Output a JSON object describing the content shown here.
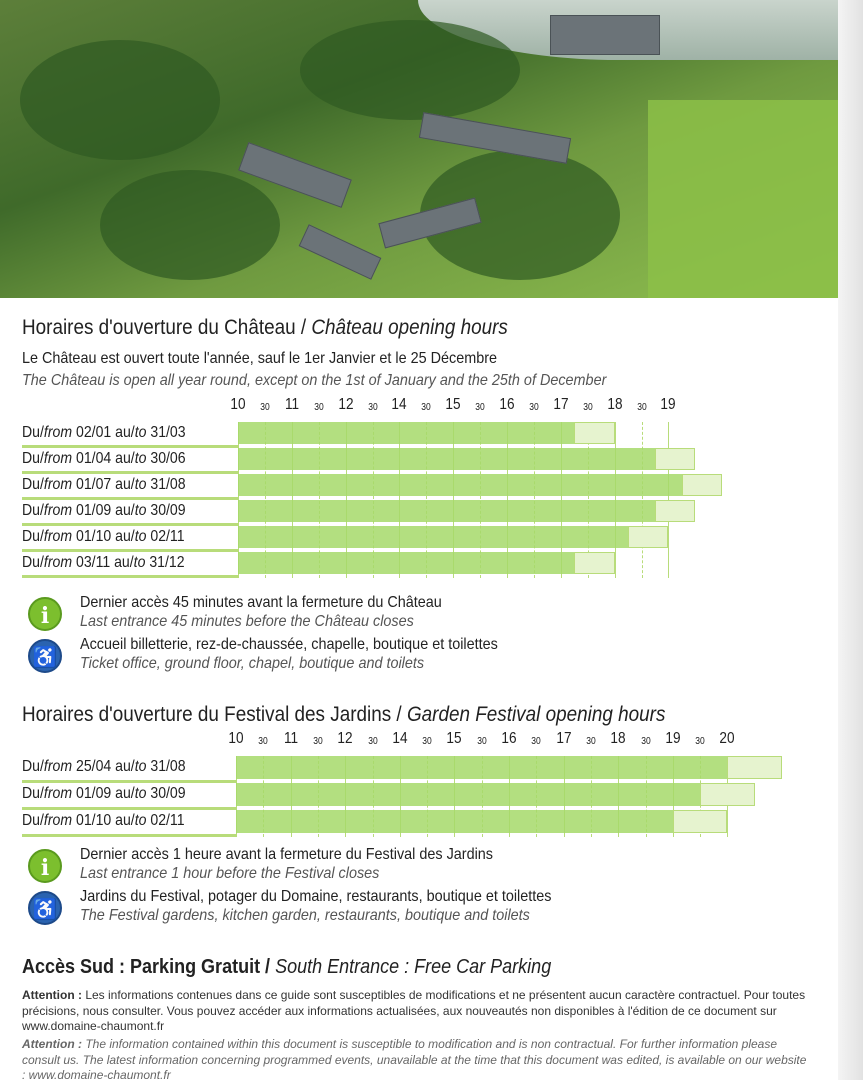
{
  "chateau": {
    "title_fr": "Horaires d'ouverture du Château /",
    "title_en": " Château opening hours",
    "intro_fr": "Le Château est ouvert toute l'année, sauf le 1er Janvier et le 25 Décembre",
    "intro_en": "The Château is open all year round, except on the 1st of January and the 25th of December",
    "axis_ticks": [
      "10",
      "30",
      "11",
      "30",
      "12",
      "30",
      "14",
      "30",
      "15",
      "30",
      "16",
      "30",
      "17",
      "30",
      "18",
      "30",
      "19"
    ],
    "rows": [
      {
        "from": "02/01",
        "to": "31/03",
        "last_entry": "16:15",
        "closing": "17:00"
      },
      {
        "from": "01/04",
        "to": "30/06",
        "last_entry": "17:45",
        "closing": "18:30"
      },
      {
        "from": "01/07",
        "to": "31/08",
        "last_entry": "18:15",
        "closing": "19:00"
      },
      {
        "from": "01/09",
        "to": "30/09",
        "last_entry": "17:45",
        "closing": "18:30"
      },
      {
        "from": "01/10",
        "to": "02/11",
        "last_entry": "17:15",
        "closing": "18:00"
      },
      {
        "from": "03/11",
        "to": "31/12",
        "last_entry": "16:15",
        "closing": "17:00"
      }
    ],
    "notes": [
      {
        "icon": "info-icon",
        "fr": "Dernier accès 45 minutes avant la fermeture du Château",
        "en": "Last entrance 45 minutes before the Château closes"
      },
      {
        "icon": "wheelchair-icon",
        "fr": "Accueil billetterie, rez-de-chaussée, chapelle, boutique et toilettes",
        "en": "Ticket office, ground floor, chapel, boutique and toilets"
      }
    ]
  },
  "garden": {
    "title_fr": "Horaires d'ouverture du Festival des Jardins /",
    "title_en": " Garden Festival opening hours",
    "axis_ticks": [
      "10",
      "30",
      "11",
      "30",
      "12",
      "30",
      "14",
      "30",
      "15",
      "30",
      "16",
      "30",
      "17",
      "30",
      "18",
      "30",
      "19",
      "30",
      "20"
    ],
    "rows": [
      {
        "from": "25/04",
        "to": "31/08",
        "last_entry": "19:00",
        "closing": "20:00"
      },
      {
        "from": "01/09",
        "to": "30/09",
        "last_entry": "18:30",
        "closing": "19:30"
      },
      {
        "from": "01/10",
        "to": "02/11",
        "last_entry": "18:00",
        "closing": "19:00"
      }
    ],
    "notes": [
      {
        "icon": "info-icon",
        "fr": "Dernier accès 1 heure avant la fermeture du Festival des Jardins",
        "en": "Last entrance 1 hour before the Festival closes"
      },
      {
        "icon": "wheelchair-icon",
        "fr": "Jardins du Festival, potager du Domaine, restaurants, boutique et toilettes",
        "en": "The Festival gardens, kitchen garden, restaurants, boutique and toilets"
      }
    ]
  },
  "row_words": {
    "du": "Du/",
    "from": "from",
    "au": " au/",
    "to": "to"
  },
  "parking": {
    "fr": "Accès Sud : Parking Gratuit /",
    "en": " South Entrance : Free Car Parking"
  },
  "footer": {
    "fr_label": "Attention :",
    "fr": " Les informations contenues dans ce guide sont susceptibles de modifications et ne présentent aucun caractère contractuel. Pour toutes précisions, nous consulter. Vous pouvez accéder aux informations actualisées, aux nouveautés non disponibles à l'édition de ce document sur www.domaine-chaumont.fr",
    "en_label": "Attention :",
    "en": " The information contained within this document is susceptible to modification and is non contractual. For further information please consult us. The latest information concerning programmed events, unavailable at the time that this document was edited, is available on our website : www.domaine-chaumont.fr"
  },
  "colors": {
    "open": "#a6d96a",
    "last_entry_band": "#e6f3cf",
    "grid": "#b8dc7a",
    "info": "#7cbf2e",
    "accessibility": "#2a63b0"
  }
}
